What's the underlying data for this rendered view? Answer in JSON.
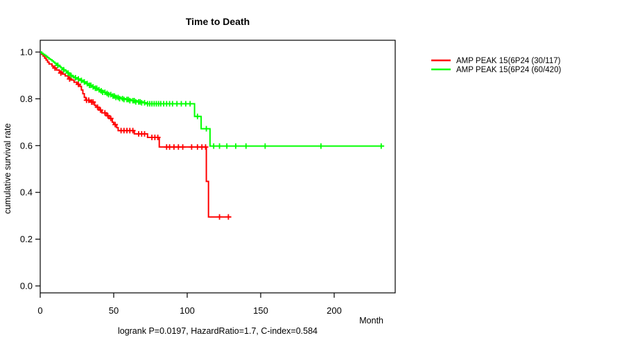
{
  "title": "Time to Death",
  "xlabel": "Month",
  "ylabel": "cumulative survival rate",
  "annotation": "logrank P=0.0197, HazardRatio=1.7, C-index=0.584",
  "chart_data": {
    "type": "line",
    "subtype": "kaplan-meier-step-survival",
    "title": "Time to Death",
    "xlabel": "Month",
    "ylabel": "cumulative survival rate",
    "xlim": [
      0,
      241
    ],
    "ylim": [
      0.0,
      1.0
    ],
    "x_ticks": [
      0,
      50,
      100,
      150,
      200
    ],
    "y_ticks": [
      0.0,
      0.2,
      0.4,
      0.6,
      0.8,
      1.0
    ],
    "grid": "off",
    "legend_position": "right-outside",
    "series": [
      {
        "name": "AMP PEAK 15(6P24 (30/117)",
        "color": "#ff0000",
        "end_month": 130,
        "steps": [
          [
            0,
            1.0
          ],
          [
            1,
            0.99
          ],
          [
            2,
            0.983
          ],
          [
            3,
            0.974
          ],
          [
            4,
            0.966
          ],
          [
            5,
            0.957
          ],
          [
            6,
            0.949
          ],
          [
            8,
            0.94
          ],
          [
            9,
            0.932
          ],
          [
            11,
            0.923
          ],
          [
            13,
            0.915
          ],
          [
            15,
            0.906
          ],
          [
            17,
            0.898
          ],
          [
            19,
            0.889
          ],
          [
            21,
            0.88
          ],
          [
            23,
            0.871
          ],
          [
            25,
            0.862
          ],
          [
            27,
            0.853
          ],
          [
            28,
            0.838
          ],
          [
            29,
            0.822
          ],
          [
            30,
            0.806
          ],
          [
            31,
            0.794
          ],
          [
            34,
            0.786
          ],
          [
            37,
            0.772
          ],
          [
            38,
            0.764
          ],
          [
            40,
            0.752
          ],
          [
            42,
            0.74
          ],
          [
            45,
            0.728
          ],
          [
            47,
            0.716
          ],
          [
            49,
            0.7
          ],
          [
            50,
            0.69
          ],
          [
            52,
            0.677
          ],
          [
            53,
            0.664
          ],
          [
            64,
            0.65
          ],
          [
            73,
            0.635
          ],
          [
            81,
            0.594
          ],
          [
            113,
            0.447
          ],
          [
            114.5,
            0.295
          ]
        ],
        "censors": [
          [
            10,
            0.932
          ],
          [
            14,
            0.91
          ],
          [
            20,
            0.885
          ],
          [
            26,
            0.862
          ],
          [
            31.5,
            0.794
          ],
          [
            33,
            0.794
          ],
          [
            35,
            0.786
          ],
          [
            36,
            0.786
          ],
          [
            39,
            0.764
          ],
          [
            41,
            0.752
          ],
          [
            44,
            0.74
          ],
          [
            46,
            0.728
          ],
          [
            48,
            0.716
          ],
          [
            51,
            0.69
          ],
          [
            55,
            0.664
          ],
          [
            57,
            0.664
          ],
          [
            59,
            0.664
          ],
          [
            61,
            0.664
          ],
          [
            63,
            0.664
          ],
          [
            67,
            0.65
          ],
          [
            69,
            0.65
          ],
          [
            71,
            0.65
          ],
          [
            76,
            0.635
          ],
          [
            78,
            0.635
          ],
          [
            80,
            0.635
          ],
          [
            86,
            0.594
          ],
          [
            88,
            0.594
          ],
          [
            91,
            0.594
          ],
          [
            94,
            0.594
          ],
          [
            97,
            0.594
          ],
          [
            103,
            0.594
          ],
          [
            107,
            0.594
          ],
          [
            110,
            0.594
          ],
          [
            112.5,
            0.594
          ],
          [
            122,
            0.295
          ],
          [
            128,
            0.295
          ]
        ]
      },
      {
        "name": "AMP PEAK 15(6P24 (60/420)",
        "color": "#00ff00",
        "end_month": 234,
        "steps": [
          [
            0,
            1.0
          ],
          [
            1,
            0.995
          ],
          [
            2,
            0.99
          ],
          [
            3,
            0.986
          ],
          [
            4,
            0.981
          ],
          [
            5,
            0.976
          ],
          [
            6,
            0.971
          ],
          [
            7,
            0.967
          ],
          [
            8,
            0.962
          ],
          [
            9,
            0.957
          ],
          [
            10,
            0.952
          ],
          [
            11,
            0.948
          ],
          [
            12,
            0.943
          ],
          [
            13,
            0.938
          ],
          [
            14,
            0.933
          ],
          [
            15,
            0.929
          ],
          [
            16,
            0.924
          ],
          [
            17,
            0.919
          ],
          [
            18,
            0.914
          ],
          [
            19,
            0.91
          ],
          [
            20,
            0.905
          ],
          [
            21,
            0.9
          ],
          [
            22,
            0.895
          ],
          [
            23,
            0.89
          ],
          [
            25,
            0.885
          ],
          [
            27,
            0.879
          ],
          [
            29,
            0.872
          ],
          [
            31,
            0.865
          ],
          [
            33,
            0.858
          ],
          [
            35,
            0.851
          ],
          [
            37,
            0.845
          ],
          [
            39,
            0.839
          ],
          [
            41,
            0.834
          ],
          [
            43,
            0.828
          ],
          [
            45,
            0.823
          ],
          [
            47,
            0.818
          ],
          [
            49,
            0.812
          ],
          [
            52,
            0.806
          ],
          [
            55,
            0.801
          ],
          [
            58,
            0.797
          ],
          [
            62,
            0.792
          ],
          [
            66,
            0.787
          ],
          [
            70,
            0.783
          ],
          [
            72,
            0.779
          ],
          [
            105,
            0.725
          ],
          [
            109.5,
            0.672
          ],
          [
            115.5,
            0.598
          ]
        ],
        "censors": [
          [
            12,
            0.943
          ],
          [
            16,
            0.924
          ],
          [
            19,
            0.91
          ],
          [
            21,
            0.9
          ],
          [
            24,
            0.89
          ],
          [
            26,
            0.885
          ],
          [
            28,
            0.879
          ],
          [
            30,
            0.872
          ],
          [
            32,
            0.865
          ],
          [
            33.5,
            0.858
          ],
          [
            34.5,
            0.858
          ],
          [
            36,
            0.851
          ],
          [
            37.5,
            0.845
          ],
          [
            38.5,
            0.845
          ],
          [
            40,
            0.839
          ],
          [
            41.5,
            0.834
          ],
          [
            42.5,
            0.828
          ],
          [
            44,
            0.828
          ],
          [
            45.5,
            0.823
          ],
          [
            46.5,
            0.818
          ],
          [
            48,
            0.818
          ],
          [
            49.5,
            0.812
          ],
          [
            50.5,
            0.812
          ],
          [
            51.5,
            0.806
          ],
          [
            53,
            0.806
          ],
          [
            54,
            0.801
          ],
          [
            56,
            0.801
          ],
          [
            57,
            0.797
          ],
          [
            59,
            0.797
          ],
          [
            60,
            0.797
          ],
          [
            61,
            0.792
          ],
          [
            63,
            0.792
          ],
          [
            64,
            0.792
          ],
          [
            65,
            0.787
          ],
          [
            67,
            0.787
          ],
          [
            68,
            0.787
          ],
          [
            69,
            0.783
          ],
          [
            71,
            0.783
          ],
          [
            73,
            0.779
          ],
          [
            74.5,
            0.779
          ],
          [
            76,
            0.779
          ],
          [
            77.5,
            0.779
          ],
          [
            79,
            0.779
          ],
          [
            80.5,
            0.779
          ],
          [
            82,
            0.779
          ],
          [
            84,
            0.779
          ],
          [
            86,
            0.779
          ],
          [
            88,
            0.779
          ],
          [
            90,
            0.779
          ],
          [
            93,
            0.779
          ],
          [
            96,
            0.779
          ],
          [
            99,
            0.779
          ],
          [
            102,
            0.779
          ],
          [
            107,
            0.725
          ],
          [
            113,
            0.672
          ],
          [
            118,
            0.598
          ],
          [
            122,
            0.598
          ],
          [
            127,
            0.598
          ],
          [
            133,
            0.598
          ],
          [
            140,
            0.598
          ],
          [
            153,
            0.598
          ],
          [
            191,
            0.598
          ],
          [
            232,
            0.598
          ]
        ]
      }
    ]
  }
}
